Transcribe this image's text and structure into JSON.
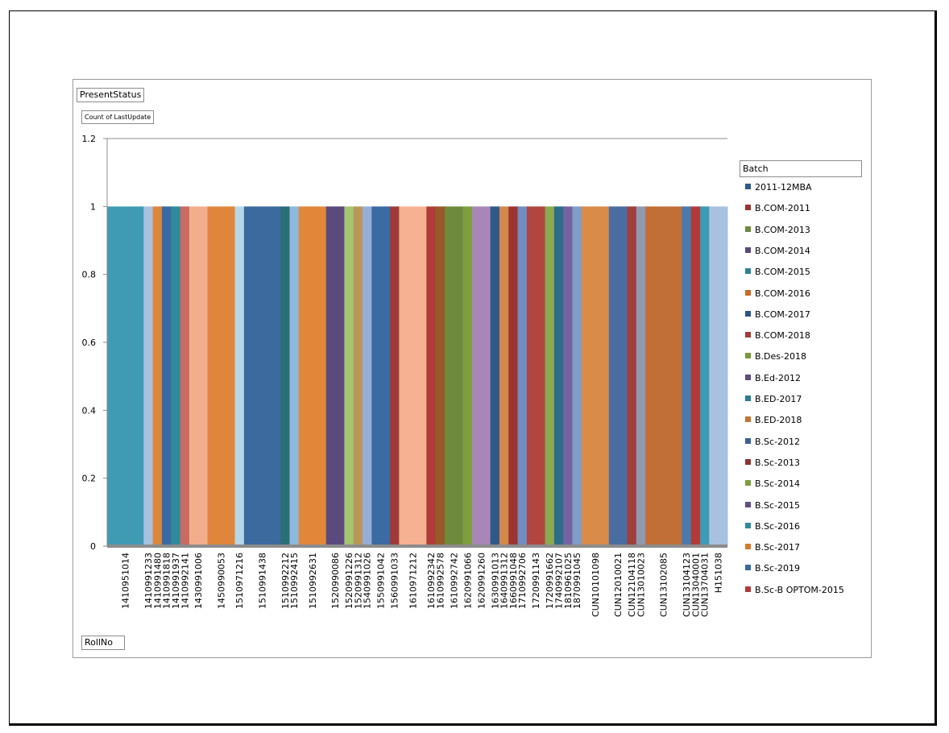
{
  "fields": {
    "filter": "PresentStatus",
    "value": "Count of LastUpdate",
    "axis": "RollNo",
    "legend": "Batch"
  },
  "chart_data": {
    "type": "bar",
    "stacked": true,
    "ylim": [
      0,
      1.2
    ],
    "yticks": [
      "0",
      "0.2",
      "0.4",
      "0.6",
      "0.8",
      "1",
      "1.2"
    ],
    "xlabel": "RollNo",
    "ylabel": "",
    "categories": [
      "1410951014",
      "1410991233",
      "1410991480",
      "1410991818",
      "1410991937",
      "1410992141",
      "1430991006",
      "1450990053",
      "1510971216",
      "1510991438",
      "1510992212",
      "1510992415",
      "1510992631",
      "1520990086",
      "1520991226",
      "1520991312",
      "1540991026",
      "1550991042",
      "1560991033",
      "1610971212",
      "1610992342",
      "1610992578",
      "1610992742",
      "1620991066",
      "1620991260",
      "1630991013",
      "1640991312",
      "1660991048",
      "1710992706",
      "1720991143",
      "1720991662",
      "1740992107",
      "1810961025",
      "1870991045",
      "CUN10101098",
      "CUN12010021",
      "CUN12104118",
      "CUN13010023",
      "CUN13102085",
      "CUN13104123",
      "CUN13040001",
      "CUN13704031",
      "H151038"
    ],
    "value": 1,
    "legend_title": "Batch",
    "series": [
      {
        "name": "2011-12MBA",
        "color": "#2E5A8A"
      },
      {
        "name": "B.COM-2011",
        "color": "#9C3532"
      },
      {
        "name": "B.COM-2013",
        "color": "#6E8B3D"
      },
      {
        "name": "B.COM-2014",
        "color": "#5B4A7E"
      },
      {
        "name": "B.COM-2015",
        "color": "#2F8197"
      },
      {
        "name": "B.COM-2016",
        "color": "#C76B24"
      },
      {
        "name": "B.COM-2017",
        "color": "#2C5588"
      },
      {
        "name": "B.COM-2018",
        "color": "#A33A36"
      },
      {
        "name": "B.Des-2018",
        "color": "#7A9A3A"
      },
      {
        "name": "B.Ed-2012",
        "color": "#5E4B85"
      },
      {
        "name": "B.ED-2017",
        "color": "#2A7F8F"
      },
      {
        "name": "B.ED-2018",
        "color": "#C47534"
      },
      {
        "name": "B.Sc-2012",
        "color": "#3A6095"
      },
      {
        "name": "B.Sc-2013",
        "color": "#8E3230"
      },
      {
        "name": "B.Sc-2014",
        "color": "#7E9E3E"
      },
      {
        "name": "B.Sc-2015",
        "color": "#634E8A"
      },
      {
        "name": "B.Sc-2016",
        "color": "#2F8A99"
      },
      {
        "name": "B.Sc-2017",
        "color": "#D9792D"
      },
      {
        "name": "B.Sc-2019",
        "color": "#3A69A1"
      },
      {
        "name": "B.Sc-B OPTOM-2015",
        "color": "#B23B3A"
      }
    ]
  }
}
